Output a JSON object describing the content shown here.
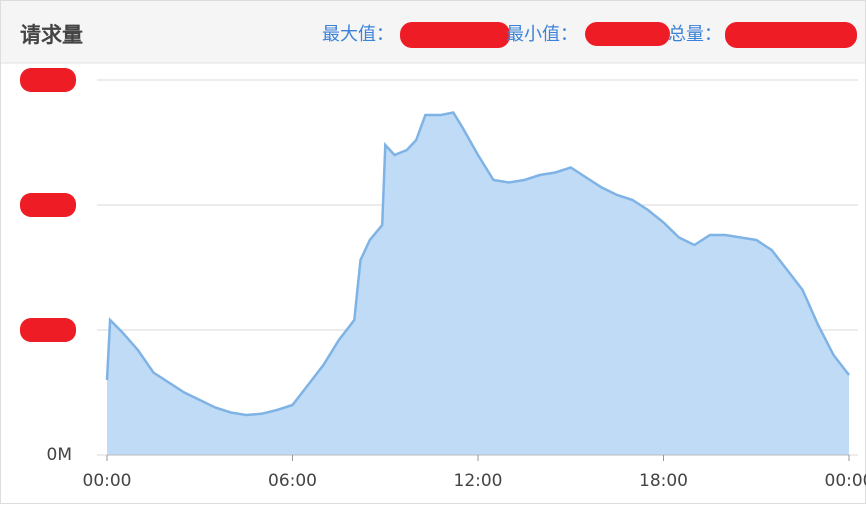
{
  "header": {
    "title": "请求量",
    "stats": [
      "最大值：",
      "最小值：",
      "总量："
    ]
  },
  "chart_data": {
    "type": "area",
    "line_color": "#7fb3e6",
    "fill_color": "#c0dbf5",
    "grid": true,
    "x": [
      0,
      0.1,
      0.5,
      1,
      1.5,
      2,
      2.5,
      3,
      3.5,
      4,
      4.5,
      5,
      5.5,
      6,
      6.5,
      7,
      7.5,
      8,
      8.2,
      8.5,
      8.9,
      9,
      9.3,
      9.7,
      10,
      10.3,
      10.8,
      11.2,
      11.5,
      12,
      12.5,
      13,
      13.5,
      14,
      14.5,
      15,
      15.5,
      16,
      16.5,
      17,
      17.5,
      18,
      18.5,
      19,
      19.5,
      20,
      20.5,
      21,
      21.5,
      22,
      22.5,
      23,
      23.5,
      24
    ],
    "values": [
      0.6,
      1.08,
      0.98,
      0.84,
      0.66,
      0.58,
      0.5,
      0.44,
      0.38,
      0.34,
      0.32,
      0.33,
      0.36,
      0.4,
      0.56,
      0.72,
      0.92,
      1.08,
      1.56,
      1.72,
      1.84,
      2.48,
      2.4,
      2.44,
      2.52,
      2.72,
      2.72,
      2.74,
      2.62,
      2.4,
      2.2,
      2.18,
      2.2,
      2.24,
      2.26,
      2.3,
      2.22,
      2.14,
      2.08,
      2.04,
      1.96,
      1.86,
      1.74,
      1.68,
      1.76,
      1.76,
      1.74,
      1.72,
      1.64,
      1.48,
      1.32,
      1.04,
      0.8,
      0.64
    ],
    "xlim": [
      0,
      24
    ],
    "xticks": [
      {
        "value": 0,
        "label": "00:00"
      },
      {
        "value": 6,
        "label": "06:00"
      },
      {
        "value": 12,
        "label": "12:00"
      },
      {
        "value": 18,
        "label": "18:00"
      },
      {
        "value": 24,
        "label": "00:00"
      }
    ],
    "ylim": [
      0,
      3
    ],
    "yticks": [
      {
        "value": 0,
        "label": "0M"
      },
      1,
      2,
      3
    ]
  }
}
